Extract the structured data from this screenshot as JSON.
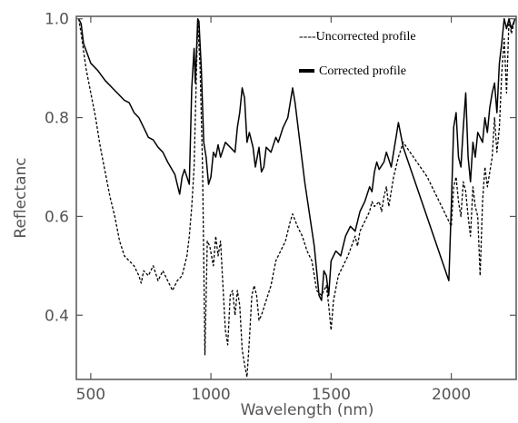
{
  "chart_data": {
    "type": "line",
    "xlabel": "Wavelength (nm)",
    "ylabel": "Reflectanc",
    "xlim": [
      440,
      2270
    ],
    "ylim": [
      0.27,
      1.005
    ],
    "x_ticks": [
      500,
      1000,
      1500,
      2000
    ],
    "x_tick_labels": [
      "500",
      "1000",
      "1500",
      "2000"
    ],
    "y_ticks": [
      0.4,
      0.6,
      0.8,
      1.0
    ],
    "y_tick_labels": [
      "0.4",
      "0.6",
      "0.8",
      "1.0"
    ],
    "grid": false,
    "legend_position": "top-right",
    "series": [
      {
        "name": "Corrected profile",
        "legend_label": "Corrected profile",
        "style": "solid",
        "color": "#000000",
        "points": [
          [
            450,
            1.0
          ],
          [
            460,
            0.99
          ],
          [
            470,
            0.95
          ],
          [
            500,
            0.91
          ],
          [
            530,
            0.895
          ],
          [
            560,
            0.875
          ],
          [
            600,
            0.855
          ],
          [
            640,
            0.835
          ],
          [
            660,
            0.83
          ],
          [
            680,
            0.81
          ],
          [
            700,
            0.8
          ],
          [
            720,
            0.78
          ],
          [
            740,
            0.76
          ],
          [
            760,
            0.755
          ],
          [
            780,
            0.74
          ],
          [
            800,
            0.73
          ],
          [
            820,
            0.71
          ],
          [
            850,
            0.685
          ],
          [
            870,
            0.645
          ],
          [
            880,
            0.68
          ],
          [
            890,
            0.695
          ],
          [
            910,
            0.665
          ],
          [
            920,
            0.86
          ],
          [
            930,
            0.94
          ],
          [
            935,
            0.87
          ],
          [
            945,
            1.0
          ],
          [
            950,
            0.995
          ],
          [
            960,
            0.9
          ],
          [
            970,
            0.75
          ],
          [
            980,
            0.72
          ],
          [
            990,
            0.665
          ],
          [
            1000,
            0.68
          ],
          [
            1010,
            0.73
          ],
          [
            1020,
            0.72
          ],
          [
            1030,
            0.745
          ],
          [
            1040,
            0.72
          ],
          [
            1060,
            0.75
          ],
          [
            1080,
            0.74
          ],
          [
            1100,
            0.73
          ],
          [
            1110,
            0.78
          ],
          [
            1120,
            0.81
          ],
          [
            1130,
            0.86
          ],
          [
            1140,
            0.84
          ],
          [
            1150,
            0.75
          ],
          [
            1160,
            0.77
          ],
          [
            1175,
            0.74
          ],
          [
            1185,
            0.7
          ],
          [
            1200,
            0.74
          ],
          [
            1210,
            0.69
          ],
          [
            1220,
            0.7
          ],
          [
            1230,
            0.74
          ],
          [
            1250,
            0.73
          ],
          [
            1270,
            0.76
          ],
          [
            1280,
            0.75
          ],
          [
            1300,
            0.78
          ],
          [
            1320,
            0.8
          ],
          [
            1340,
            0.86
          ],
          [
            1350,
            0.83
          ],
          [
            1390,
            0.67
          ],
          [
            1430,
            0.54
          ],
          [
            1450,
            0.44
          ],
          [
            1460,
            0.43
          ],
          [
            1470,
            0.49
          ],
          [
            1480,
            0.48
          ],
          [
            1490,
            0.44
          ],
          [
            1500,
            0.51
          ],
          [
            1520,
            0.53
          ],
          [
            1540,
            0.52
          ],
          [
            1560,
            0.56
          ],
          [
            1580,
            0.58
          ],
          [
            1600,
            0.57
          ],
          [
            1620,
            0.61
          ],
          [
            1640,
            0.63
          ],
          [
            1660,
            0.66
          ],
          [
            1670,
            0.65
          ],
          [
            1680,
            0.69
          ],
          [
            1690,
            0.71
          ],
          [
            1700,
            0.695
          ],
          [
            1720,
            0.71
          ],
          [
            1730,
            0.73
          ],
          [
            1750,
            0.7
          ],
          [
            1760,
            0.73
          ],
          [
            1770,
            0.76
          ],
          [
            1780,
            0.79
          ],
          [
            1800,
            0.74
          ],
          [
            1990,
            0.47
          ],
          [
            2000,
            0.62
          ],
          [
            2010,
            0.78
          ],
          [
            2020,
            0.81
          ],
          [
            2030,
            0.72
          ],
          [
            2040,
            0.7
          ],
          [
            2050,
            0.78
          ],
          [
            2060,
            0.85
          ],
          [
            2070,
            0.72
          ],
          [
            2080,
            0.67
          ],
          [
            2090,
            0.75
          ],
          [
            2100,
            0.72
          ],
          [
            2110,
            0.77
          ],
          [
            2130,
            0.75
          ],
          [
            2140,
            0.8
          ],
          [
            2150,
            0.77
          ],
          [
            2160,
            0.82
          ],
          [
            2170,
            0.85
          ],
          [
            2180,
            0.87
          ],
          [
            2190,
            0.81
          ],
          [
            2200,
            0.91
          ],
          [
            2210,
            0.95
          ],
          [
            2220,
            1.0
          ],
          [
            2230,
            0.98
          ],
          [
            2240,
            1.0
          ],
          [
            2250,
            0.98
          ],
          [
            2265,
            1.0
          ]
        ]
      },
      {
        "name": "Uncorrected profile",
        "legend_label": "----Uncorrected profile",
        "style": "dashed",
        "color": "#000000",
        "points": [
          [
            450,
            1.0
          ],
          [
            460,
            0.97
          ],
          [
            480,
            0.9
          ],
          [
            500,
            0.85
          ],
          [
            520,
            0.8
          ],
          [
            540,
            0.74
          ],
          [
            560,
            0.69
          ],
          [
            580,
            0.64
          ],
          [
            600,
            0.6
          ],
          [
            620,
            0.55
          ],
          [
            640,
            0.52
          ],
          [
            660,
            0.51
          ],
          [
            680,
            0.5
          ],
          [
            700,
            0.48
          ],
          [
            710,
            0.465
          ],
          [
            720,
            0.49
          ],
          [
            740,
            0.48
          ],
          [
            760,
            0.5
          ],
          [
            780,
            0.47
          ],
          [
            800,
            0.49
          ],
          [
            820,
            0.47
          ],
          [
            840,
            0.45
          ],
          [
            860,
            0.47
          ],
          [
            880,
            0.48
          ],
          [
            890,
            0.5
          ],
          [
            900,
            0.52
          ],
          [
            910,
            0.56
          ],
          [
            920,
            0.62
          ],
          [
            930,
            0.7
          ],
          [
            935,
            0.8
          ],
          [
            945,
            0.995
          ],
          [
            955,
            0.9
          ],
          [
            965,
            0.7
          ],
          [
            975,
            0.32
          ],
          [
            985,
            0.55
          ],
          [
            995,
            0.54
          ],
          [
            1010,
            0.5
          ],
          [
            1020,
            0.56
          ],
          [
            1030,
            0.52
          ],
          [
            1040,
            0.55
          ],
          [
            1050,
            0.46
          ],
          [
            1060,
            0.37
          ],
          [
            1070,
            0.34
          ],
          [
            1080,
            0.44
          ],
          [
            1090,
            0.45
          ],
          [
            1100,
            0.4
          ],
          [
            1110,
            0.45
          ],
          [
            1120,
            0.42
          ],
          [
            1130,
            0.33
          ],
          [
            1140,
            0.3
          ],
          [
            1150,
            0.275
          ],
          [
            1160,
            0.35
          ],
          [
            1170,
            0.44
          ],
          [
            1180,
            0.46
          ],
          [
            1190,
            0.44
          ],
          [
            1200,
            0.39
          ],
          [
            1210,
            0.4
          ],
          [
            1230,
            0.43
          ],
          [
            1250,
            0.46
          ],
          [
            1270,
            0.51
          ],
          [
            1290,
            0.53
          ],
          [
            1310,
            0.55
          ],
          [
            1330,
            0.59
          ],
          [
            1340,
            0.605
          ],
          [
            1360,
            0.58
          ],
          [
            1380,
            0.56
          ],
          [
            1400,
            0.53
          ],
          [
            1420,
            0.51
          ],
          [
            1440,
            0.45
          ],
          [
            1460,
            0.44
          ],
          [
            1480,
            0.46
          ],
          [
            1490,
            0.42
          ],
          [
            1500,
            0.37
          ],
          [
            1510,
            0.43
          ],
          [
            1530,
            0.48
          ],
          [
            1550,
            0.5
          ],
          [
            1570,
            0.52
          ],
          [
            1600,
            0.56
          ],
          [
            1610,
            0.54
          ],
          [
            1620,
            0.57
          ],
          [
            1640,
            0.59
          ],
          [
            1660,
            0.61
          ],
          [
            1670,
            0.63
          ],
          [
            1680,
            0.62
          ],
          [
            1700,
            0.63
          ],
          [
            1710,
            0.61
          ],
          [
            1720,
            0.64
          ],
          [
            1730,
            0.66
          ],
          [
            1740,
            0.62
          ],
          [
            1760,
            0.68
          ],
          [
            1780,
            0.72
          ],
          [
            1800,
            0.75
          ],
          [
            1900,
            0.68
          ],
          [
            1980,
            0.6
          ],
          [
            2000,
            0.58
          ],
          [
            2010,
            0.66
          ],
          [
            2020,
            0.68
          ],
          [
            2030,
            0.63
          ],
          [
            2040,
            0.6
          ],
          [
            2050,
            0.67
          ],
          [
            2060,
            0.65
          ],
          [
            2070,
            0.6
          ],
          [
            2080,
            0.56
          ],
          [
            2090,
            0.66
          ],
          [
            2100,
            0.62
          ],
          [
            2110,
            0.6
          ],
          [
            2120,
            0.48
          ],
          [
            2130,
            0.63
          ],
          [
            2140,
            0.7
          ],
          [
            2150,
            0.66
          ],
          [
            2170,
            0.72
          ],
          [
            2180,
            0.8
          ],
          [
            2190,
            0.73
          ],
          [
            2200,
            0.78
          ],
          [
            2210,
            0.89
          ],
          [
            2220,
            0.96
          ],
          [
            2230,
            0.85
          ],
          [
            2240,
            1.0
          ],
          [
            2250,
            0.97
          ],
          [
            2265,
            1.0
          ]
        ]
      }
    ]
  }
}
